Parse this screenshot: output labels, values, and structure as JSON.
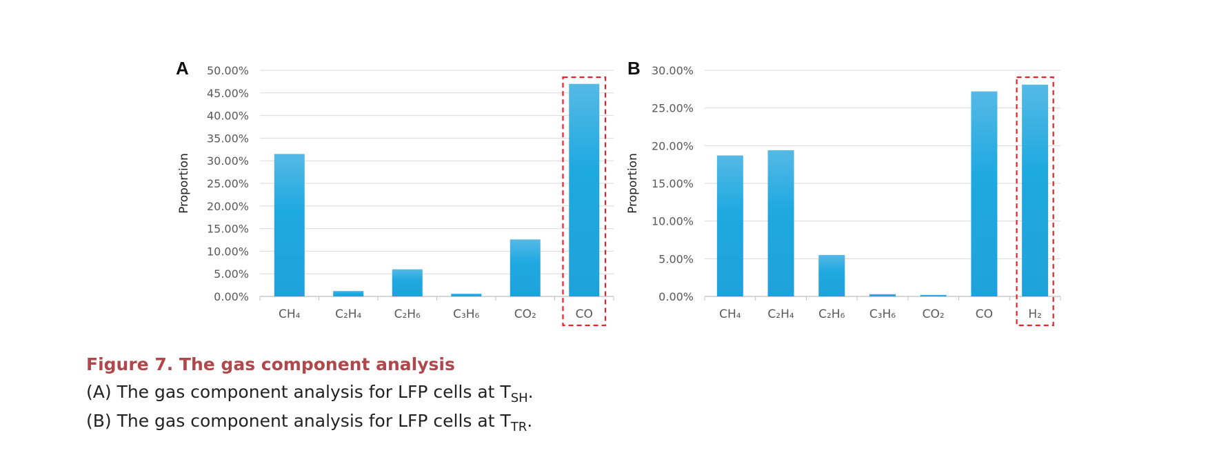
{
  "figure": {
    "caption_title": "Figure 7.  The gas component analysis",
    "caption_a_prefix": "(A) The gas component analysis for LFP cells at T",
    "caption_a_sub": "SH",
    "caption_a_suffix": ".",
    "caption_b_prefix": "(B) The gas component analysis for LFP cells at T",
    "caption_b_sub": "TR",
    "caption_b_suffix": "."
  },
  "colors": {
    "bar": "#1fa9e1",
    "bar_top": "#55b9e5",
    "highlight_box": "#e8202a",
    "grid": "#d9d9d9",
    "caption_title": "#b0474b"
  },
  "chart_data": [
    {
      "type": "bar",
      "panel_label": "A",
      "title": "",
      "xlabel": "",
      "ylabel": "Proportion",
      "ylim": [
        0,
        50
      ],
      "y_tick_values": [
        0,
        5,
        10,
        15,
        20,
        25,
        30,
        35,
        40,
        45,
        50
      ],
      "y_tick_labels": [
        "0.00%",
        "5.00%",
        "10.00%",
        "15.00%",
        "20.00%",
        "25.00%",
        "30.00%",
        "35.00%",
        "40.00%",
        "45.00%",
        "50.00%"
      ],
      "categories": [
        "CH₄",
        "C₂H₄",
        "C₂H₆",
        "C₃H₆",
        "CO₂",
        "CO"
      ],
      "values": [
        31.5,
        1.2,
        6.0,
        0.6,
        12.6,
        47.0
      ],
      "unit": "%",
      "highlighted_category": "CO",
      "grid": true
    },
    {
      "type": "bar",
      "panel_label": "B",
      "title": "",
      "xlabel": "",
      "ylabel": "Proportion",
      "ylim": [
        0,
        30
      ],
      "y_tick_values": [
        0,
        5,
        10,
        15,
        20,
        25,
        30
      ],
      "y_tick_labels": [
        "0.00%",
        "5.00%",
        "10.00%",
        "15.00%",
        "20.00%",
        "25.00%",
        "30.00%"
      ],
      "categories": [
        "CH₄",
        "C₂H₄",
        "C₂H₆",
        "C₃H₆",
        "CO₂",
        "CO",
        "H₂"
      ],
      "values": [
        18.7,
        19.4,
        5.5,
        0.3,
        0.2,
        27.2,
        28.1
      ],
      "unit": "%",
      "highlighted_category": "H₂",
      "grid": true
    }
  ]
}
